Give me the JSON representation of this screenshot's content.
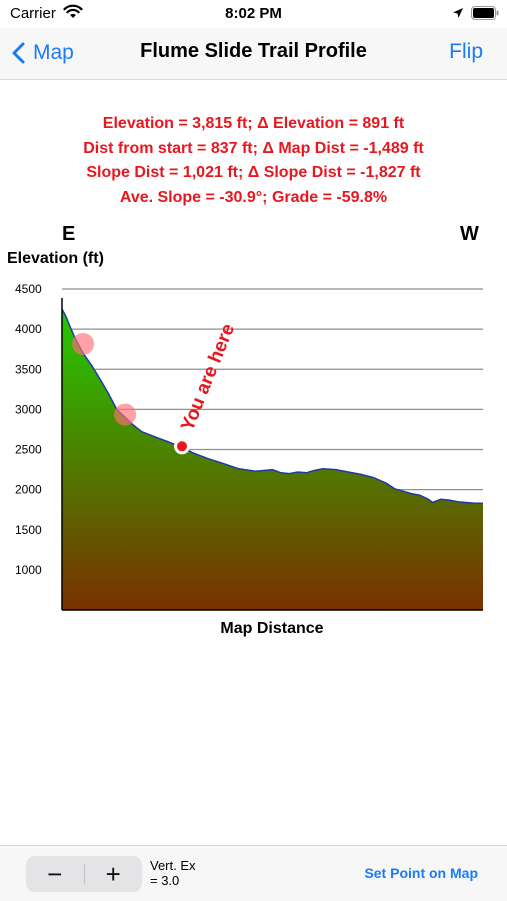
{
  "status_bar": {
    "carrier": "Carrier",
    "time": "8:02 PM",
    "icons": [
      "wifi-icon",
      "location-arrow-icon",
      "battery-icon"
    ]
  },
  "nav": {
    "back_label": "Map",
    "title": "Flume Slide Trail Profile",
    "flip_label": "Flip"
  },
  "stats": {
    "line1": "Elevation = 3,815 ft;   Δ Elevation = 891 ft",
    "line2": "Dist from start = 837 ft;   Δ Map Dist = -1,489 ft",
    "line3": "Slope Dist = 1,021 ft;   Δ Slope Dist = -1,827 ft",
    "line4": "Ave. Slope = -30.9°;   Grade = -59.8%",
    "color": "#e8171f"
  },
  "chart_data": {
    "type": "area",
    "xlabel": "Map Distance",
    "ylabel": "Elevation (ft)",
    "left_direction": "E",
    "right_direction": "W",
    "ylim": [
      500,
      4500
    ],
    "y_ticks": [
      4500,
      4000,
      3500,
      3000,
      2500,
      2000,
      1500,
      1000
    ],
    "grid_lines": [
      4500,
      4000,
      3500,
      3000,
      2500,
      2000
    ],
    "xlim": [
      0,
      100
    ],
    "x": [
      0,
      1,
      2,
      3,
      5,
      7,
      9,
      11,
      13,
      15,
      17,
      19,
      21,
      23,
      25,
      27,
      29,
      31,
      33,
      35,
      38,
      42,
      46,
      50,
      52,
      54,
      56,
      58,
      60,
      62,
      65,
      68,
      71,
      74,
      77,
      79,
      81,
      83,
      85,
      87,
      88,
      90,
      92,
      94,
      96,
      98,
      100
    ],
    "values": [
      4250,
      4150,
      4020,
      3900,
      3700,
      3550,
      3380,
      3200,
      3000,
      2900,
      2800,
      2720,
      2680,
      2640,
      2600,
      2560,
      2520,
      2460,
      2420,
      2380,
      2330,
      2260,
      2230,
      2250,
      2210,
      2200,
      2220,
      2210,
      2240,
      2260,
      2250,
      2220,
      2190,
      2150,
      2080,
      2010,
      1980,
      1950,
      1930,
      1880,
      1840,
      1880,
      1870,
      1850,
      1840,
      1830,
      1830
    ],
    "markers": [
      {
        "x": 5,
        "y": 3815
      },
      {
        "x": 15,
        "y": 2935
      }
    ],
    "current_position": {
      "x": 28.5,
      "y": 2540,
      "label": "You are here"
    },
    "fill_top_color": "#22cc00",
    "fill_bottom_color": "#7a3000",
    "line_color": "#1f3aa6"
  },
  "toolbar": {
    "minus_label": "−",
    "plus_label": "+",
    "vert_ex_line1": "Vert. Ex",
    "vert_ex_line2": "= 3.0",
    "set_point_label": "Set Point on Map"
  }
}
